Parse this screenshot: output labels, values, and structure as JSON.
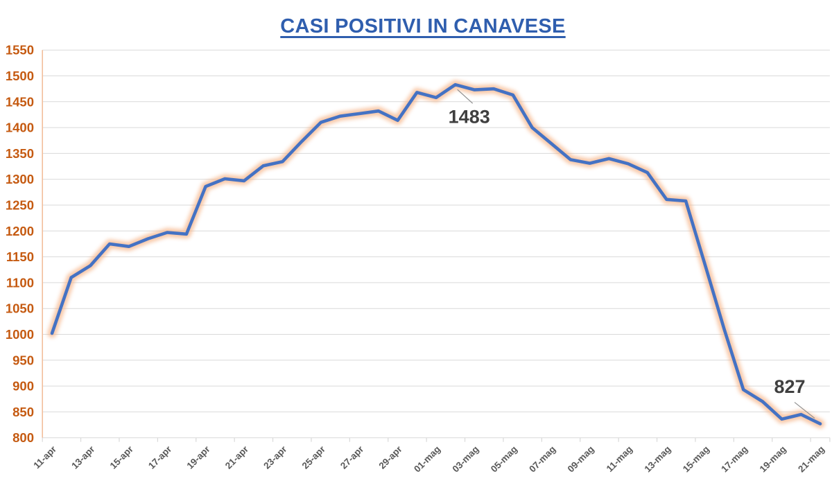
{
  "title": "CASI POSITIVI IN CANAVESE",
  "colors": {
    "title": "#2F5EAE",
    "line": "#4472C4",
    "glow": "#F5B183",
    "y_labels": "#C55A11",
    "x_labels": "#595959",
    "gridline": "#D9D9D9",
    "y_axis_line": "#F2BE9B",
    "x_axis_line": "#D9D9D9",
    "annotation_text": "#3F3F3F",
    "leader_line": "#909090",
    "background": "#FFFFFF"
  },
  "chart_data": {
    "type": "line",
    "title": "CASI POSITIVI IN CANAVESE",
    "xlabel": "",
    "ylabel": "",
    "ylim": [
      800,
      1550
    ],
    "ytick_step": 50,
    "grid": "horizontal",
    "legend": "none",
    "x_label_every": 2,
    "x": [
      "11-apr",
      "12-apr",
      "13-apr",
      "14-apr",
      "15-apr",
      "16-apr",
      "17-apr",
      "18-apr",
      "19-apr",
      "20-apr",
      "21-apr",
      "22-apr",
      "23-apr",
      "24-apr",
      "25-apr",
      "26-apr",
      "27-apr",
      "28-apr",
      "29-apr",
      "30-apr",
      "01-mag",
      "02-mag",
      "03-mag",
      "04-mag",
      "05-mag",
      "06-mag",
      "07-mag",
      "08-mag",
      "09-mag",
      "10-mag",
      "11-mag",
      "12-mag",
      "13-mag",
      "14-mag",
      "15-mag",
      "16-mag",
      "17-mag",
      "18-mag",
      "19-mag",
      "20-mag",
      "21-mag"
    ],
    "series": [
      {
        "name": "Casi positivi",
        "values": [
          1002,
          1110,
          1133,
          1175,
          1170,
          1185,
          1197,
          1194,
          1286,
          1301,
          1297,
          1326,
          1334,
          1373,
          1410,
          1422,
          1427,
          1432,
          1414,
          1468,
          1458,
          1483,
          1473,
          1475,
          1463,
          1400,
          1369,
          1338,
          1331,
          1340,
          1330,
          1313,
          1261,
          1258,
          1135,
          1010,
          893,
          870,
          836,
          845,
          827
        ]
      }
    ],
    "annotations": [
      {
        "label": "1483",
        "index": 21,
        "text_dx": 20,
        "text_dy": 46,
        "leader": [
          3,
          7,
          25,
          27
        ]
      },
      {
        "label": "827",
        "index": 40,
        "text_dx": -44,
        "text_dy": -54,
        "leader": [
          -37,
          -31,
          -8,
          -8
        ]
      }
    ]
  }
}
